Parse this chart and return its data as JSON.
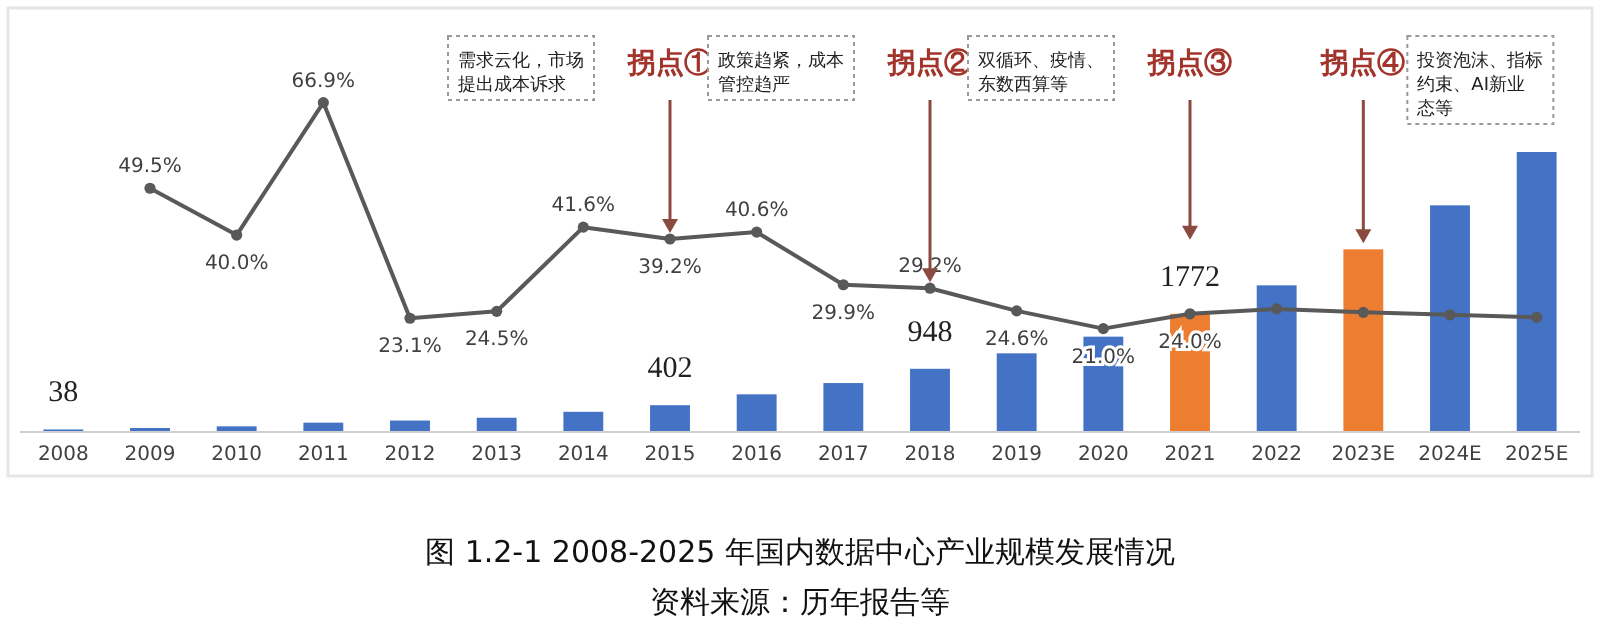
{
  "chart_data": {
    "type": "bar",
    "title": "图 1.2-1 2008-2025 年国内数据中心产业规模发展情况",
    "categories": [
      "2008",
      "2009",
      "2010",
      "2011",
      "2012",
      "2013",
      "2014",
      "2015",
      "2016",
      "2017",
      "2018",
      "2019",
      "2020",
      "2021",
      "2022",
      "2023E",
      "2024E",
      "2025E"
    ],
    "series": [
      {
        "colors": [
          "#4472c4",
          "#4472c4",
          "#4472c4",
          "#4472c4",
          "#4472c4",
          "#4472c4",
          "#4472c4",
          "#4472c4",
          "#4472c4",
          "#4472c4",
          "#4472c4",
          "#4472c4",
          "#4472c4",
          "#ed7d31",
          "#4472c4",
          "#ed7d31",
          "#4472c4",
          "#4472c4"
        ],
        "values": [
          38,
          60,
          85,
          140,
          172,
          214,
          303,
          402,
          565,
          734,
          948,
          1180,
          1430,
          1772,
          2200,
          2740,
          3400,
          4200
        ],
        "value_labels": [
          "38",
          null,
          null,
          null,
          null,
          null,
          null,
          "402",
          null,
          null,
          "948",
          null,
          null,
          "1772",
          null,
          null,
          null,
          null
        ]
      },
      {
        "type": "line",
        "axis": "y2",
        "color": "#595959",
        "values": [
          null,
          49.5,
          40.0,
          66.9,
          23.1,
          24.5,
          41.6,
          39.2,
          40.6,
          29.9,
          29.2,
          24.6,
          21.0,
          24.0,
          25.0,
          24.3,
          23.8,
          23.3
        ],
        "value_labels": [
          null,
          "49.5%",
          "40.0%",
          "66.9%",
          "23.1%",
          "24.5%",
          "41.6%",
          "39.2%",
          "40.6%",
          "29.9%",
          "29.2%",
          "24.6%",
          "21.0%",
          "24.0%",
          null,
          null,
          null,
          null
        ]
      }
    ],
    "marker": "circle",
    "annotations": [
      {
        "text": "拐点①",
        "x": "2015"
      },
      "需求云化，市场提出成本诉求",
      {
        "text": "拐点②",
        "x": "2018"
      },
      "政策趋紧，成本管控趋严",
      {
        "text": "拐点③",
        "x": "2021"
      },
      "双循环、疫情、东数西算等",
      {
        "text": "拐点④",
        "x": "2023E"
      },
      "投资泡沫、指标约束、AI新业态等",
      "资料来源：历年报告等"
    ]
  }
}
